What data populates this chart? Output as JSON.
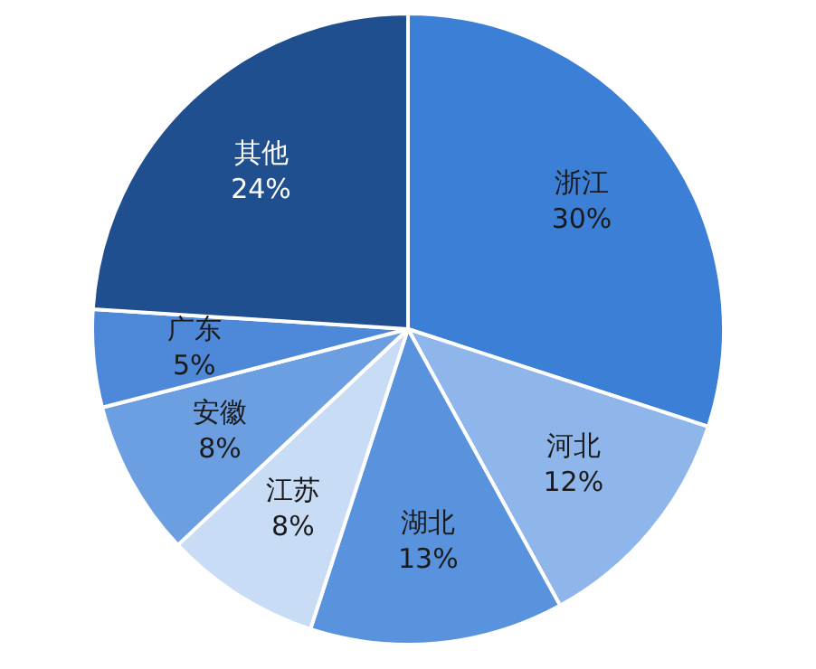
{
  "chart_data": {
    "type": "pie",
    "categories": [
      "浙江",
      "河北",
      "湖北",
      "江苏",
      "安徽",
      "广东",
      "其他"
    ],
    "values": [
      30,
      12,
      13,
      8,
      8,
      5,
      24
    ],
    "colors": [
      "#3c7fd6",
      "#8fb6ea",
      "#5a93dd",
      "#c9dcf5",
      "#6b9fe2",
      "#4d88d9",
      "#1f4f8f"
    ],
    "value_labels": [
      "30%",
      "12%",
      "13%",
      "8%",
      "8%",
      "5%",
      "24%"
    ],
    "legend": false
  }
}
